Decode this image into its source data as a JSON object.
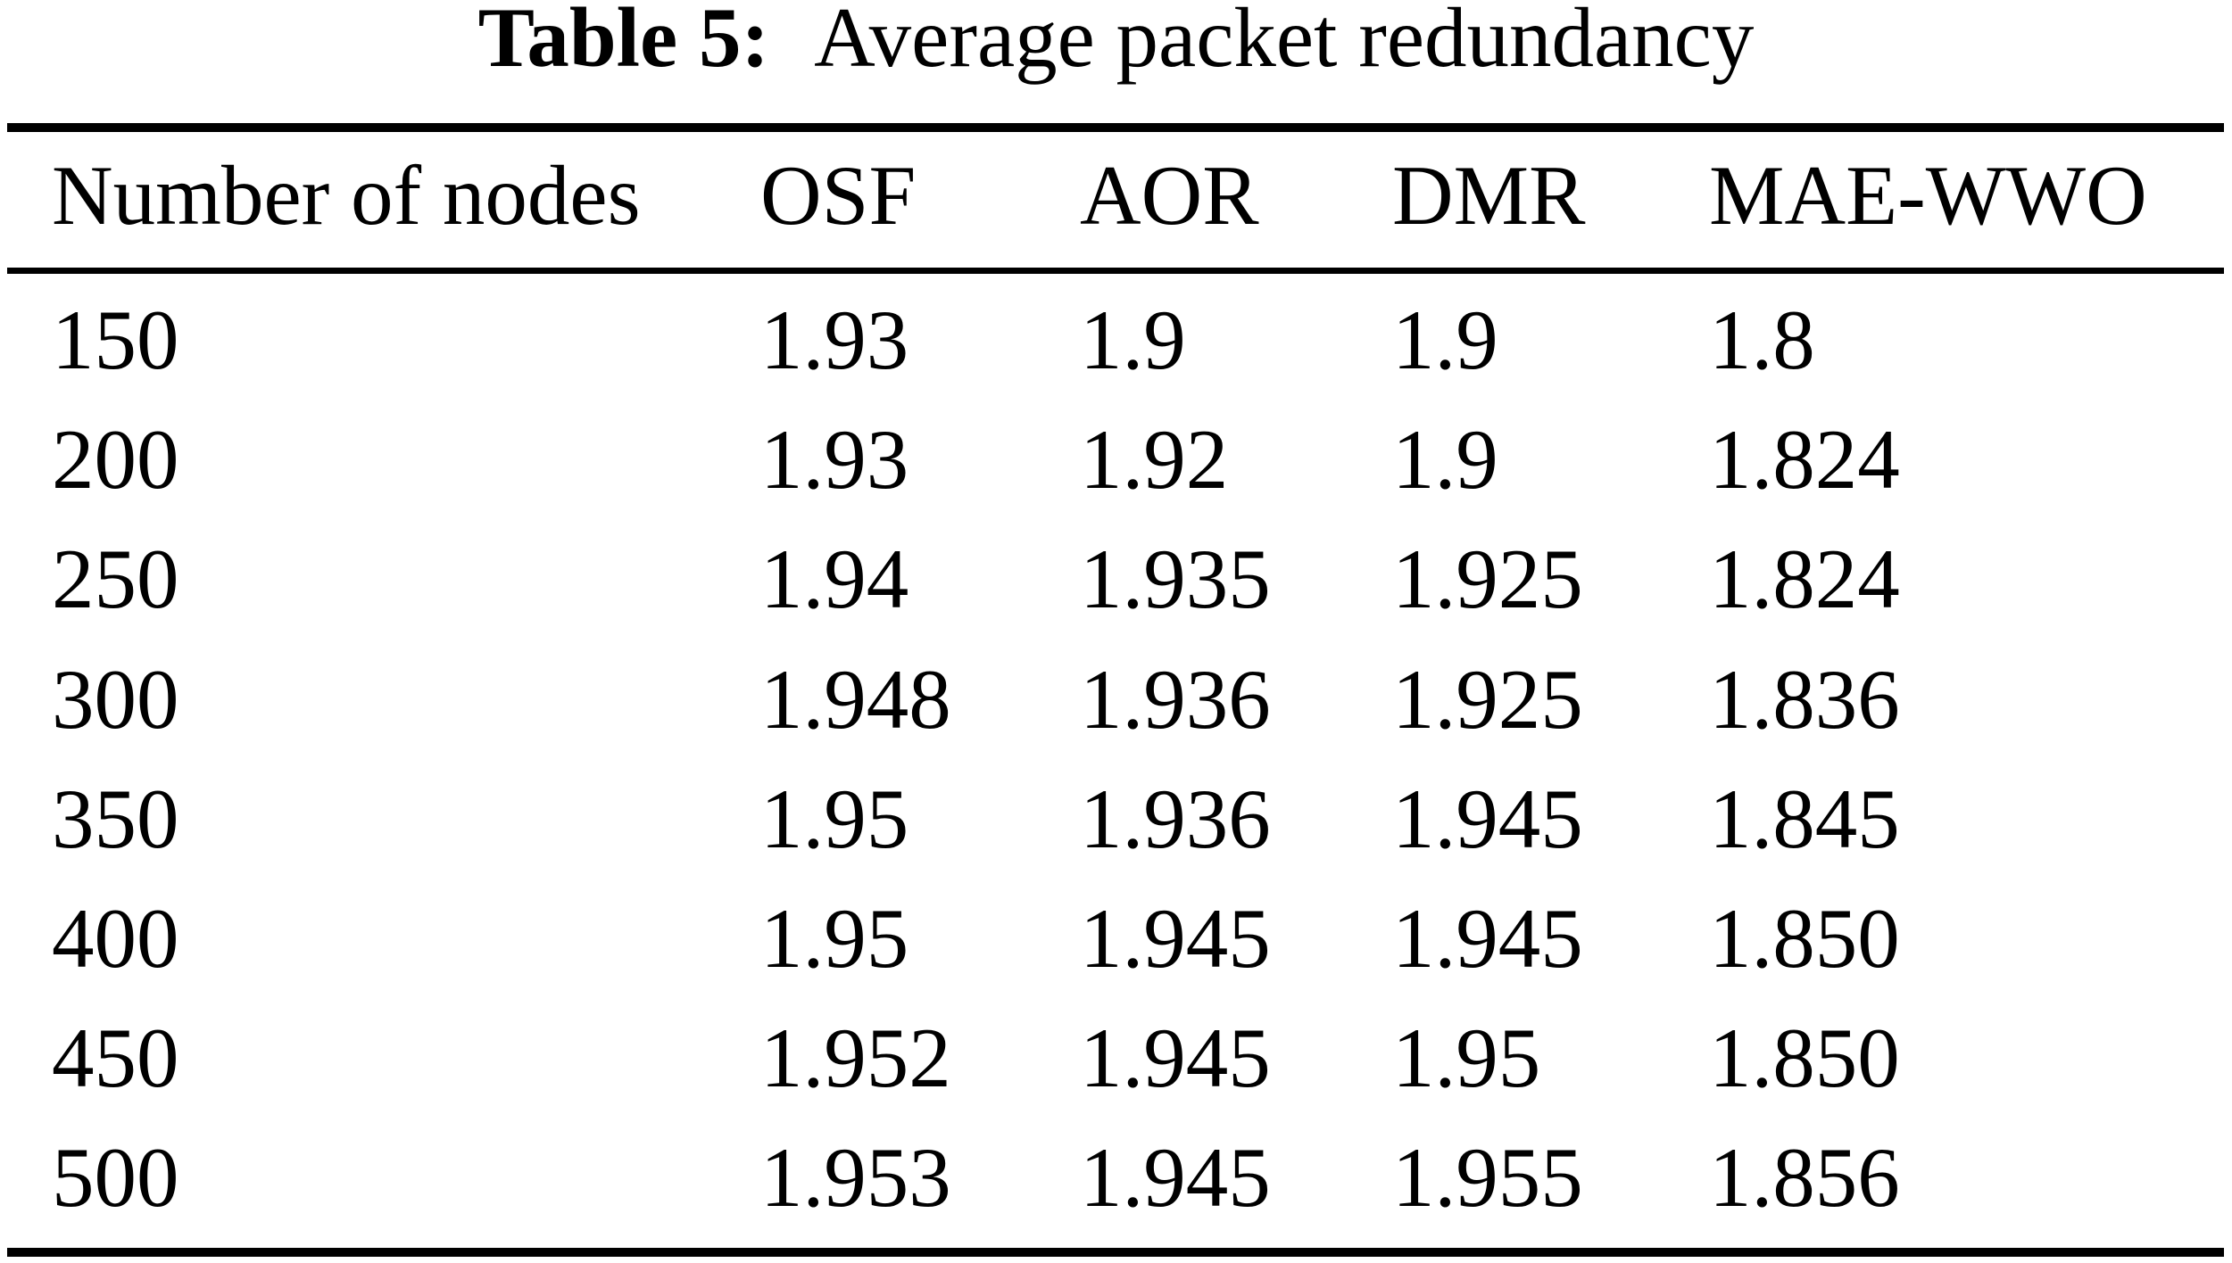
{
  "title": {
    "label": "Table 5:",
    "text": "Average packet redundancy"
  },
  "table": {
    "columns": [
      "Number of nodes",
      "OSF",
      "AOR",
      "DMR",
      "MAE-WWO"
    ],
    "rows": [
      [
        "150",
        "1.93",
        "1.9",
        "1.9",
        "1.8"
      ],
      [
        "200",
        "1.93",
        "1.92",
        "1.9",
        "1.824"
      ],
      [
        "250",
        "1.94",
        "1.935",
        "1.925",
        "1.824"
      ],
      [
        "300",
        "1.948",
        "1.936",
        "1.925",
        "1.836"
      ],
      [
        "350",
        "1.95",
        "1.936",
        "1.945",
        "1.845"
      ],
      [
        "400",
        "1.95",
        "1.945",
        "1.945",
        "1.850"
      ],
      [
        "450",
        "1.952",
        "1.945",
        "1.95",
        "1.850"
      ],
      [
        "500",
        "1.953",
        "1.945",
        "1.955",
        "1.856"
      ]
    ]
  },
  "chart_data": {
    "type": "table",
    "title": "Table 5: Average packet redundancy",
    "columns": [
      "Number of nodes",
      "OSF",
      "AOR",
      "DMR",
      "MAE-WWO"
    ],
    "rows": [
      [
        150,
        1.93,
        1.9,
        1.9,
        1.8
      ],
      [
        200,
        1.93,
        1.92,
        1.9,
        1.824
      ],
      [
        250,
        1.94,
        1.935,
        1.925,
        1.824
      ],
      [
        300,
        1.948,
        1.936,
        1.925,
        1.836
      ],
      [
        350,
        1.95,
        1.936,
        1.945,
        1.845
      ],
      [
        400,
        1.95,
        1.945,
        1.945,
        1.85
      ],
      [
        450,
        1.952,
        1.945,
        1.95,
        1.85
      ],
      [
        500,
        1.953,
        1.945,
        1.955,
        1.856
      ]
    ]
  }
}
